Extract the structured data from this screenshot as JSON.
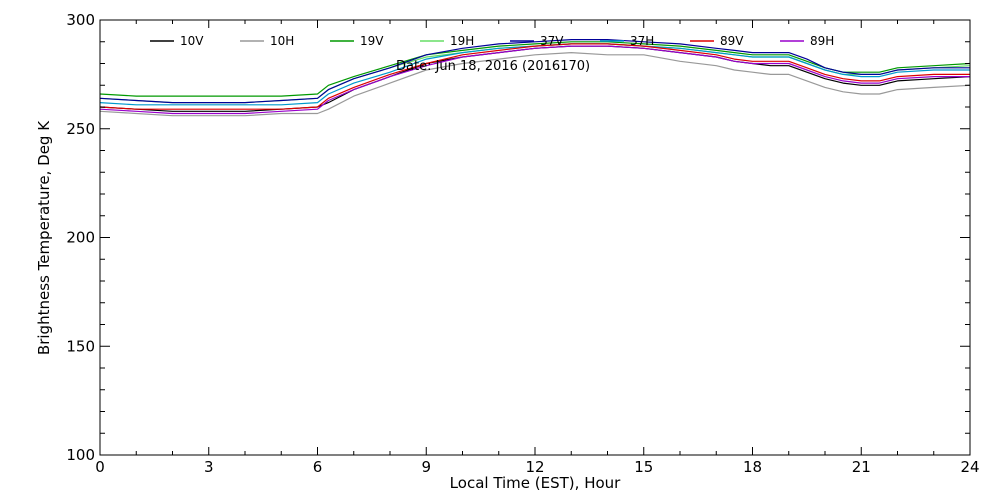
{
  "chart_data": {
    "type": "line",
    "title": "",
    "annotation": "Date: Jun 18, 2016 (2016170)",
    "xlabel": "Local Time (EST), Hour",
    "ylabel": "Brightness Temperature, Deg K",
    "xlim": [
      0,
      24
    ],
    "ylim": [
      100,
      300
    ],
    "xticks": [
      0,
      3,
      6,
      9,
      12,
      15,
      18,
      21,
      24
    ],
    "yticks": [
      100,
      150,
      200,
      250,
      300
    ],
    "grid": false,
    "legend_position": "top, inside plot, single row",
    "x": [
      0,
      1,
      2,
      3,
      4,
      5,
      6,
      6.3,
      7,
      8,
      9,
      10,
      11,
      12,
      13,
      14,
      15,
      16,
      17,
      17.5,
      18,
      18.5,
      19,
      19.5,
      20,
      20.5,
      21,
      21.5,
      22,
      23,
      24
    ],
    "series": [
      {
        "name": "10V",
        "color": "#000000",
        "values": [
          260,
          259,
          258,
          258,
          258,
          259,
          260,
          262,
          268,
          274,
          280,
          283,
          285,
          287,
          288,
          288,
          287,
          285,
          283,
          281,
          280,
          279,
          279,
          276,
          273,
          271,
          270,
          270,
          272,
          273,
          274
        ]
      },
      {
        "name": "10H",
        "color": "#999999",
        "values": [
          258,
          257,
          256,
          256,
          256,
          257,
          257,
          259,
          265,
          271,
          277,
          280,
          282,
          284,
          285,
          284,
          284,
          281,
          279,
          277,
          276,
          275,
          275,
          272,
          269,
          267,
          266,
          266,
          268,
          269,
          270
        ]
      },
      {
        "name": "19V",
        "color": "#009900",
        "values": [
          266,
          265,
          265,
          265,
          265,
          265,
          266,
          270,
          274,
          279,
          284,
          286,
          288,
          289,
          290,
          290,
          289,
          288,
          286,
          285,
          284,
          284,
          284,
          281,
          278,
          276,
          276,
          276,
          278,
          279,
          280
        ]
      },
      {
        "name": "19H",
        "color": "#66dd66",
        "values": [
          264,
          263,
          262,
          262,
          262,
          263,
          264,
          268,
          273,
          278,
          283,
          285,
          287,
          288,
          289,
          289,
          288,
          287,
          285,
          284,
          283,
          283,
          283,
          280,
          277,
          275,
          275,
          275,
          277,
          278,
          279
        ]
      },
      {
        "name": "37V",
        "color": "#000099",
        "values": [
          264,
          263,
          262,
          262,
          262,
          263,
          264,
          268,
          273,
          278,
          284,
          287,
          289,
          290,
          291,
          291,
          290,
          289,
          287,
          286,
          285,
          285,
          285,
          282,
          278,
          276,
          275,
          275,
          277,
          278,
          278
        ]
      },
      {
        "name": "37H",
        "color": "#0099cc",
        "values": [
          262,
          261,
          261,
          261,
          261,
          261,
          262,
          266,
          271,
          276,
          282,
          285,
          287,
          288,
          289,
          289,
          288,
          287,
          285,
          284,
          283,
          283,
          283,
          280,
          277,
          275,
          274,
          274,
          276,
          277,
          277
        ]
      },
      {
        "name": "89V",
        "color": "#dd0000",
        "values": [
          260,
          259,
          259,
          259,
          259,
          259,
          260,
          264,
          269,
          275,
          280,
          284,
          286,
          288,
          289,
          289,
          288,
          286,
          284,
          282,
          281,
          281,
          281,
          278,
          275,
          273,
          272,
          272,
          274,
          275,
          275
        ]
      },
      {
        "name": "89H",
        "color": "#9900cc",
        "values": [
          259,
          258,
          257,
          257,
          257,
          258,
          259,
          263,
          268,
          274,
          279,
          283,
          285,
          287,
          288,
          288,
          287,
          285,
          283,
          281,
          280,
          280,
          280,
          277,
          274,
          272,
          271,
          271,
          273,
          274,
          274
        ]
      }
    ]
  }
}
